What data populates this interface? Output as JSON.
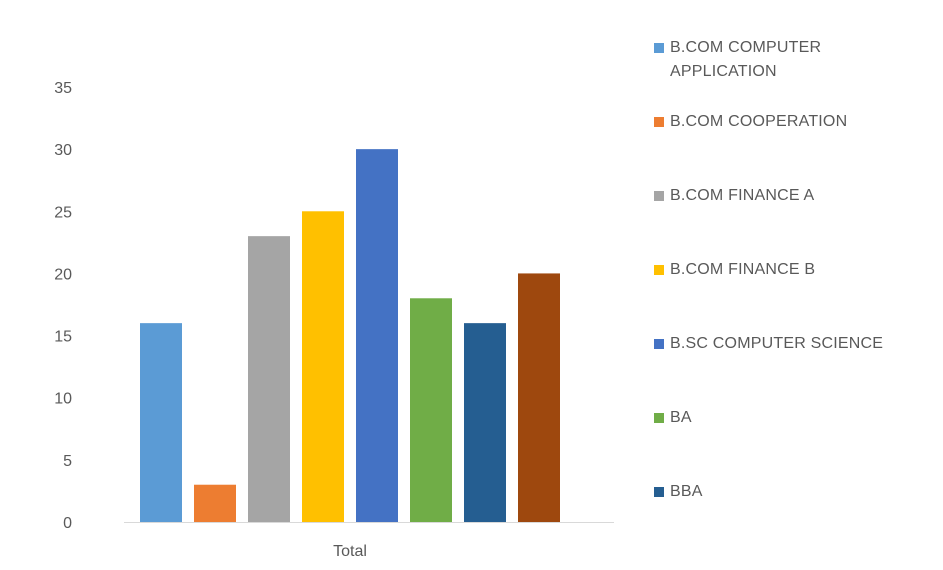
{
  "chart_data": {
    "type": "bar",
    "categories": [
      "Total"
    ],
    "series": [
      {
        "name": "B.COM COMPUTER APPLICATION",
        "values": [
          16
        ],
        "color": "#5B9BD5"
      },
      {
        "name": "B.COM COOPERATION",
        "values": [
          3
        ],
        "color": "#ED7D31"
      },
      {
        "name": "B.COM FINANCE A",
        "values": [
          23
        ],
        "color": "#A5A5A5"
      },
      {
        "name": "B.COM FINANCE B",
        "values": [
          25
        ],
        "color": "#FFC000"
      },
      {
        "name": "B.SC COMPUTER SCIENCE",
        "values": [
          30
        ],
        "color": "#4472C4"
      },
      {
        "name": "BA",
        "values": [
          18
        ],
        "color": "#70AD47"
      },
      {
        "name": "BBA",
        "values": [
          16
        ],
        "color": "#255E91"
      },
      {
        "name": "",
        "values": [
          20
        ],
        "color": "#9E480E"
      }
    ],
    "yticks": [
      "0",
      "5",
      "10",
      "15",
      "20",
      "25",
      "30",
      "35"
    ],
    "ylim": [
      0,
      35
    ],
    "xlabel": "",
    "ylabel": "",
    "title": "",
    "grid": false,
    "legend": "right"
  }
}
